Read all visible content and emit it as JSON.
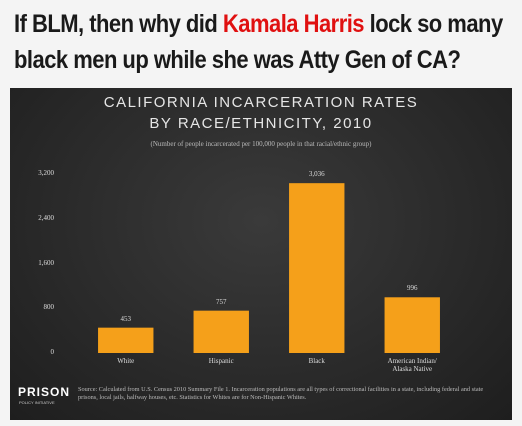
{
  "heading": {
    "parts": [
      "If BLM, then why did ",
      "Kamala Harris",
      " lock so many black men up while she was Atty Gen of CA?"
    ]
  },
  "chart_data": {
    "type": "bar",
    "title": [
      "CALIFORNIA INCARCERATION RATES",
      "BY RACE/ETHNICITY, 2010"
    ],
    "subtitle": "(Number of people incarcerated per 100,000 people in that racial/ethnic group)",
    "categories": [
      "White",
      "Hispanic",
      "Black",
      "American Indian/ Alaska Native"
    ],
    "values": [
      453,
      757,
      3036,
      996
    ],
    "value_labels": [
      "453",
      "757",
      "3,036",
      "996"
    ],
    "color": "#f5a01a",
    "ylim": [
      0,
      3200
    ],
    "yticks": [
      0,
      800,
      {
        "value": 1600,
        "label": "1,600"
      },
      {
        "value": 2400,
        "label": "2,400"
      },
      {
        "value": 3200,
        "label": "3,200"
      }
    ],
    "grid": false,
    "logo": [
      "PRISON",
      "POLICY INITIATIVE"
    ],
    "source": "Source: Calculated from U.S. Census 2010 Summary File 1. Incarceration populations are all types of correctional facilities in a state, including federal and state prisons, local jails, halfway houses, etc. Statistics for Whites are for Non-Hispanic Whites."
  }
}
